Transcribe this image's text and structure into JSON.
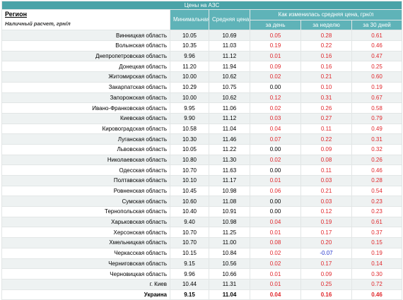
{
  "title": "Цены на АЗС",
  "header": {
    "region": "Регион",
    "note": "Наличный расчет, грн/л",
    "min": "Минимальная цена",
    "avg": "Средняя цена",
    "change": "Как изменилась средняя цена, грн/л",
    "day": "за день",
    "week": "за неделю",
    "month": "за 30 дней"
  },
  "rows": [
    [
      "Винницкая область",
      "10.05",
      "10.69",
      "0.05",
      "0.28",
      "0.61"
    ],
    [
      "Волынская область",
      "10.35",
      "11.03",
      "0.19",
      "0.22",
      "0.46"
    ],
    [
      "Днепропетровская область",
      "9.96",
      "11.12",
      "0.01",
      "0.16",
      "0.47"
    ],
    [
      "Донецкая область",
      "11.20",
      "11.94",
      "0.09",
      "0.16",
      "0.25"
    ],
    [
      "Житомирская область",
      "10.00",
      "10.62",
      "0.02",
      "0.21",
      "0.60"
    ],
    [
      "Закарпатская область",
      "10.29",
      "10.75",
      "0.00",
      "0.10",
      "0.19"
    ],
    [
      "Запорожская область",
      "10.00",
      "10.62",
      "0.12",
      "0.31",
      "0.67"
    ],
    [
      "Ивано-Франковская область",
      "9.95",
      "11.06",
      "0.02",
      "0.26",
      "0.58"
    ],
    [
      "Киевская область",
      "9.90",
      "11.12",
      "0.03",
      "0.27",
      "0.79"
    ],
    [
      "Кировоградская область",
      "10.58",
      "11.04",
      "0.04",
      "0.11",
      "0.49"
    ],
    [
      "Луганская область",
      "10.30",
      "11.46",
      "0.07",
      "0.22",
      "0.31"
    ],
    [
      "Львовская область",
      "10.05",
      "11.22",
      "0.00",
      "0.09",
      "0.32"
    ],
    [
      "Николаевская область",
      "10.80",
      "11.30",
      "0.02",
      "0.08",
      "0.26"
    ],
    [
      "Одесская область",
      "10.70",
      "11.63",
      "0.00",
      "0.11",
      "0.46"
    ],
    [
      "Полтавская область",
      "10.10",
      "11.17",
      "0.01",
      "0.03",
      "0.28"
    ],
    [
      "Ровненская область",
      "10.45",
      "10.98",
      "0.06",
      "0.21",
      "0.54"
    ],
    [
      "Сумская область",
      "10.60",
      "11.08",
      "0.00",
      "0.03",
      "0.23"
    ],
    [
      "Тернопольская область",
      "10.40",
      "10.91",
      "0.00",
      "0.12",
      "0.23"
    ],
    [
      "Харьковская область",
      "9.40",
      "10.98",
      "0.04",
      "0.19",
      "0.61"
    ],
    [
      "Херсонская область",
      "10.70",
      "11.25",
      "0.01",
      "0.17",
      "0.37"
    ],
    [
      "Хмельницкая область",
      "10.70",
      "11.00",
      "0.08",
      "0.20",
      "0.15"
    ],
    [
      "Черкасская область",
      "10.15",
      "10.84",
      "0.02",
      "-0.07",
      "0.19"
    ],
    [
      "Черниговская область",
      "9.15",
      "10.56",
      "0.02",
      "0.17",
      "0.14"
    ],
    [
      "Черновицкая область",
      "9.96",
      "10.66",
      "0.01",
      "0.09",
      "0.30"
    ],
    [
      "г. Киев",
      "10.44",
      "11.31",
      "0.01",
      "0.25",
      "0.72"
    ],
    [
      "Украина",
      "9.15",
      "11.04",
      "0.04",
      "0.16",
      "0.46"
    ]
  ]
}
